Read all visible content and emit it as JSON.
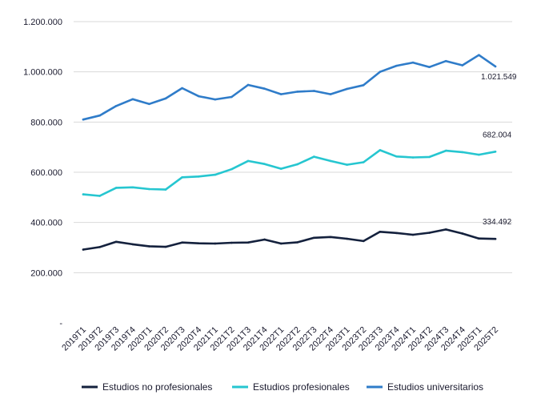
{
  "chart_data": {
    "type": "line",
    "title": "",
    "xlabel": "",
    "ylabel": "",
    "ylim": [
      0,
      1200000
    ],
    "grid": true,
    "legend": "bottom",
    "yticks": [
      "-",
      "200.000",
      "400.000",
      "600.000",
      "800.000",
      "1.000.000",
      "1.200.000"
    ],
    "categories": [
      "2019T1",
      "2019T2",
      "2019T3",
      "2019T4",
      "2020T1",
      "2020T2",
      "2020T3",
      "2020T4",
      "2021T1",
      "2021T2",
      "2021T3",
      "2021T4",
      "2022T1",
      "2022T2",
      "2022T3",
      "2022T4",
      "2023T1",
      "2023T2",
      "2023T3",
      "2023T4",
      "2024T1",
      "2024T2",
      "2024T3",
      "2024T4",
      "2025T1",
      "2025T2"
    ],
    "series": [
      {
        "name": "Estudios no profesionales",
        "color": "#14213d",
        "end_label": "334.492",
        "values": [
          292000,
          302000,
          323000,
          313000,
          305000,
          303000,
          320000,
          317000,
          316000,
          319000,
          320000,
          332000,
          316000,
          321000,
          339000,
          342000,
          335000,
          326000,
          363000,
          358000,
          351000,
          359000,
          372000,
          356000,
          336000,
          334492
        ]
      },
      {
        "name": "Estudios profesionales",
        "color": "#26c6d0",
        "end_label": "682.004",
        "values": [
          512000,
          506000,
          538000,
          540000,
          533000,
          531000,
          580000,
          583000,
          590000,
          612000,
          645000,
          633000,
          614000,
          632000,
          662000,
          645000,
          630000,
          640000,
          688000,
          663000,
          659000,
          661000,
          686000,
          680000,
          670000,
          682004
        ]
      },
      {
        "name": "Estudios universitarios",
        "color": "#2f7cc9",
        "end_label": "1.021.549",
        "values": [
          810000,
          826000,
          864000,
          891000,
          872000,
          894000,
          935000,
          903000,
          890000,
          900000,
          948000,
          933000,
          911000,
          921000,
          924000,
          911000,
          932000,
          947000,
          1000000,
          1024000,
          1037000,
          1019000,
          1043000,
          1026000,
          1067000,
          1021549
        ]
      }
    ]
  }
}
